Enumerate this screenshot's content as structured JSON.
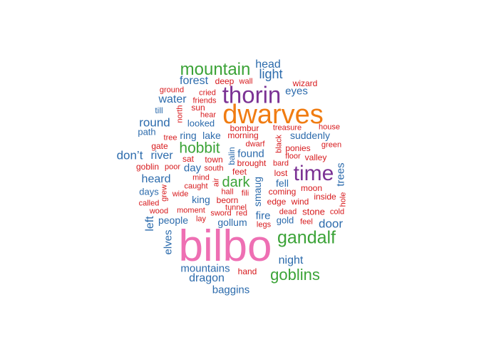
{
  "palette": {
    "red": "#d7191c",
    "blue": "#2c6bac",
    "green": "#3ba337",
    "purple": "#7b3294",
    "orange": "#f07c12",
    "pink": "#ee6fb3"
  },
  "words": [
    {
      "text": "bilbo",
      "color": "pink"
    },
    {
      "text": "dwarves",
      "color": "orange"
    },
    {
      "text": "thorin",
      "color": "purple"
    },
    {
      "text": "time",
      "color": "purple"
    },
    {
      "text": "gandalf",
      "color": "green"
    },
    {
      "text": "mountain",
      "color": "green"
    },
    {
      "text": "goblins",
      "color": "green"
    },
    {
      "text": "hobbit",
      "color": "green"
    },
    {
      "text": "dark",
      "color": "green"
    },
    {
      "text": "head",
      "color": "blue"
    },
    {
      "text": "light",
      "color": "blue"
    },
    {
      "text": "forest",
      "color": "blue"
    },
    {
      "text": "water",
      "color": "blue"
    },
    {
      "text": "eyes",
      "color": "blue"
    },
    {
      "text": "round",
      "color": "blue"
    },
    {
      "text": "path",
      "color": "blue"
    },
    {
      "text": "till",
      "color": "blue"
    },
    {
      "text": "looked",
      "color": "blue"
    },
    {
      "text": "ring",
      "color": "blue"
    },
    {
      "text": "lake",
      "color": "blue"
    },
    {
      "text": "suddenly",
      "color": "blue"
    },
    {
      "text": "don’t",
      "color": "blue"
    },
    {
      "text": "river",
      "color": "blue"
    },
    {
      "text": "found",
      "color": "blue"
    },
    {
      "text": "day",
      "color": "blue"
    },
    {
      "text": "heard",
      "color": "blue"
    },
    {
      "text": "days",
      "color": "blue"
    },
    {
      "text": "king",
      "color": "blue"
    },
    {
      "text": "fell",
      "color": "blue"
    },
    {
      "text": "door",
      "color": "blue"
    },
    {
      "text": "trees",
      "color": "blue"
    },
    {
      "text": "smaug",
      "color": "blue"
    },
    {
      "text": "balin",
      "color": "blue"
    },
    {
      "text": "fire",
      "color": "blue"
    },
    {
      "text": "gold",
      "color": "blue"
    },
    {
      "text": "gollum",
      "color": "blue"
    },
    {
      "text": "people",
      "color": "blue"
    },
    {
      "text": "left",
      "color": "blue"
    },
    {
      "text": "elves",
      "color": "blue"
    },
    {
      "text": "night",
      "color": "blue"
    },
    {
      "text": "mountains",
      "color": "blue"
    },
    {
      "text": "dragon",
      "color": "blue"
    },
    {
      "text": "baggins",
      "color": "blue"
    },
    {
      "text": "deep",
      "color": "red"
    },
    {
      "text": "wall",
      "color": "red"
    },
    {
      "text": "wizard",
      "color": "red"
    },
    {
      "text": "ground",
      "color": "red"
    },
    {
      "text": "cried",
      "color": "red"
    },
    {
      "text": "friends",
      "color": "red"
    },
    {
      "text": "north",
      "color": "red"
    },
    {
      "text": "sun",
      "color": "red"
    },
    {
      "text": "hear",
      "color": "red"
    },
    {
      "text": "bombur",
      "color": "red"
    },
    {
      "text": "treasure",
      "color": "red"
    },
    {
      "text": "black",
      "color": "red"
    },
    {
      "text": "house",
      "color": "red"
    },
    {
      "text": "morning",
      "color": "red"
    },
    {
      "text": "tree",
      "color": "red"
    },
    {
      "text": "gate",
      "color": "red"
    },
    {
      "text": "town",
      "color": "red"
    },
    {
      "text": "dwarf",
      "color": "red"
    },
    {
      "text": "ponies",
      "color": "red"
    },
    {
      "text": "green",
      "color": "red"
    },
    {
      "text": "sat",
      "color": "red"
    },
    {
      "text": "brought",
      "color": "red"
    },
    {
      "text": "floor",
      "color": "red"
    },
    {
      "text": "valley",
      "color": "red"
    },
    {
      "text": "goblin",
      "color": "red"
    },
    {
      "text": "poor",
      "color": "red"
    },
    {
      "text": "south",
      "color": "red"
    },
    {
      "text": "bard",
      "color": "red"
    },
    {
      "text": "feet",
      "color": "red"
    },
    {
      "text": "lost",
      "color": "red"
    },
    {
      "text": "mind",
      "color": "red"
    },
    {
      "text": "air",
      "color": "red"
    },
    {
      "text": "caught",
      "color": "red"
    },
    {
      "text": "grew",
      "color": "red"
    },
    {
      "text": "wide",
      "color": "red"
    },
    {
      "text": "hall",
      "color": "red"
    },
    {
      "text": "fili",
      "color": "red"
    },
    {
      "text": "coming",
      "color": "red"
    },
    {
      "text": "moon",
      "color": "red"
    },
    {
      "text": "inside",
      "color": "red"
    },
    {
      "text": "hole",
      "color": "red"
    },
    {
      "text": "called",
      "color": "red"
    },
    {
      "text": "beorn",
      "color": "red"
    },
    {
      "text": "edge",
      "color": "red"
    },
    {
      "text": "wind",
      "color": "red"
    },
    {
      "text": "wood",
      "color": "red"
    },
    {
      "text": "moment",
      "color": "red"
    },
    {
      "text": "tunnel",
      "color": "red"
    },
    {
      "text": "dead",
      "color": "red"
    },
    {
      "text": "stone",
      "color": "red"
    },
    {
      "text": "cold",
      "color": "red"
    },
    {
      "text": "sword",
      "color": "red"
    },
    {
      "text": "red",
      "color": "red"
    },
    {
      "text": "lay",
      "color": "red"
    },
    {
      "text": "legs",
      "color": "red"
    },
    {
      "text": "feel",
      "color": "red"
    },
    {
      "text": "hand",
      "color": "red"
    }
  ]
}
